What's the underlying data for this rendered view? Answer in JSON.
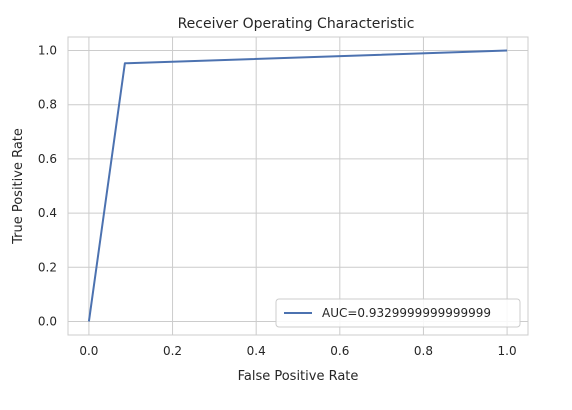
{
  "chart_data": {
    "type": "line",
    "title": "Receiver Operating Characteristic",
    "xlabel": "False Positive Rate",
    "ylabel": "True Positive Rate",
    "xlim": [
      -0.05,
      1.05
    ],
    "ylim": [
      -0.05,
      1.05
    ],
    "xticks": [
      0.0,
      0.2,
      0.4,
      0.6,
      0.8,
      1.0
    ],
    "yticks": [
      0.0,
      0.2,
      0.4,
      0.6,
      0.8,
      1.0
    ],
    "xtick_labels": [
      "0.0",
      "0.2",
      "0.4",
      "0.6",
      "0.8",
      "1.0"
    ],
    "ytick_labels": [
      "0.0",
      "0.2",
      "0.4",
      "0.6",
      "0.8",
      "1.0"
    ],
    "grid": true,
    "legend": {
      "position": "lower-right"
    },
    "series": [
      {
        "name": "AUC=0.9329999999999999",
        "color": "#4c72b0",
        "x": [
          0.0,
          0.086,
          1.0
        ],
        "y": [
          0.0,
          0.953,
          1.0
        ]
      }
    ]
  }
}
